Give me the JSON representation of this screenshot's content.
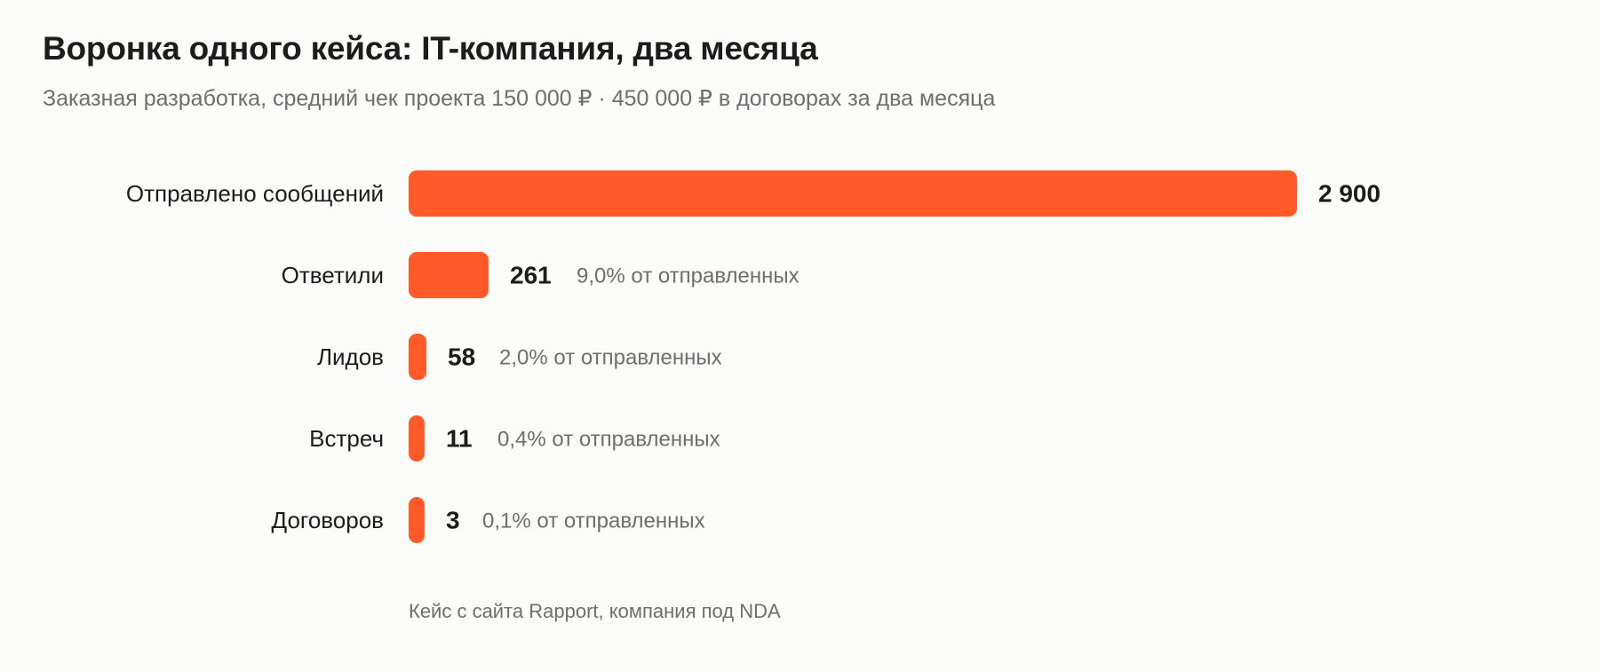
{
  "chart_data": {
    "type": "bar",
    "orientation": "horizontal",
    "title": "Воронка одного кейса: IT-компания, два месяца",
    "subtitle": "Заказная разработка, средний чек проекта 150 000 ₽ · 450 000 ₽ в договорах за два месяца",
    "categories": [
      "Отправлено сообщений",
      "Ответили",
      "Лидов",
      "Встреч",
      "Договоров"
    ],
    "values": [
      2900,
      261,
      58,
      11,
      3
    ],
    "value_labels": [
      "2 900",
      "261",
      "58",
      "11",
      "3"
    ],
    "percent_labels": [
      "",
      "9,0% от отправленных",
      "2,0% от отправленных",
      "0,4% от отправленных",
      "0,1% от отправленных"
    ],
    "xlim": [
      0,
      2900
    ],
    "grid": false,
    "bar_color": "#ff5a28",
    "source": "Кейс с сайта Rapport, компания под NDA"
  }
}
